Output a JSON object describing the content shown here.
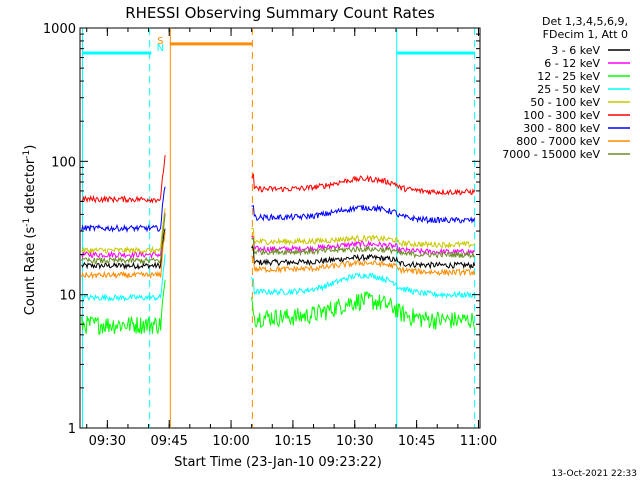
{
  "chart_data": {
    "type": "line",
    "title": "RHESSI Observing Summary Count Rates",
    "xlabel": "Start Time (23-Jan-10 09:23:22)",
    "ylabel_main": "Count Rate (s",
    "ylabel_sup1": "-1",
    "ylabel_mid": " detector",
    "ylabel_sup2": "-1",
    "ylabel_end": ")",
    "yscale": "log",
    "ylim": [
      1,
      1000
    ],
    "xlim_minutes": [
      0,
      97
    ],
    "x_ticks": [
      {
        "label": "09:30",
        "min": 6.63
      },
      {
        "label": "09:45",
        "min": 21.63
      },
      {
        "label": "10:00",
        "min": 36.63
      },
      {
        "label": "10:15",
        "min": 51.63
      },
      {
        "label": "10:30",
        "min": 66.63
      },
      {
        "label": "10:45",
        "min": 81.63
      },
      {
        "label": "11:00",
        "min": 96.63
      }
    ],
    "y_ticks": [
      {
        "label": "1",
        "value": 1
      },
      {
        "label": "10",
        "value": 10
      },
      {
        "label": "100",
        "value": 100
      },
      {
        "label": "1000",
        "value": 1000
      }
    ],
    "legend_header": [
      "Det 1,3,4,5,6,9,",
      "FDecim 1, Att 0"
    ],
    "legend_position": "right",
    "series": [
      {
        "name": "3 - 6 keV",
        "color": "#000000",
        "pre": 16.5,
        "post": 17.5,
        "bump": 1.5
      },
      {
        "name": "6 - 12 keV",
        "color": "#ff00ff",
        "pre": 20.0,
        "post": 22.0,
        "bump": 2.0
      },
      {
        "name": "12 - 25 keV",
        "color": "#00ff00",
        "pre": 6.0,
        "post": 6.8,
        "bump": 2.3
      },
      {
        "name": "25 - 50 keV",
        "color": "#00ffff",
        "pre": 9.5,
        "post": 10.5,
        "bump": 3.5
      },
      {
        "name": "50 - 100 keV",
        "color": "#c8c800",
        "pre": 21.5,
        "post": 25.0,
        "bump": 1.5
      },
      {
        "name": "100 - 300 keV",
        "color": "#ff0000",
        "pre": 52.0,
        "post": 62.0,
        "bump": 12.0
      },
      {
        "name": "300 - 800 keV",
        "color": "#0000ff",
        "pre": 31.5,
        "post": 38.0,
        "bump": 7.0
      },
      {
        "name": "800 - 7000 keV",
        "color": "#ff8c00",
        "pre": 14.0,
        "post": 15.5,
        "bump": 1.8
      },
      {
        "name": "7000 - 15000 keV",
        "color": "#6b8e23",
        "pre": 18.0,
        "post": 21.0,
        "bump": 1.0
      }
    ],
    "flags": [
      {
        "label": "S",
        "color": "#ff8c00"
      },
      {
        "label": "N",
        "color": "#00ffff"
      }
    ],
    "orbit_markers": {
      "night_bars": [
        [
          0.6,
          17.3
        ],
        [
          76.8,
          95.7
        ]
      ],
      "night_bar_value": 650,
      "saa_bar": [
        21.9,
        41.8
      ],
      "saa_bar_value": 760,
      "night_solid": [
        0.6,
        76.8
      ],
      "night_dashed": [
        16.9,
        95.7
      ],
      "saa_solid": 21.9,
      "saa_dashed": 41.8
    },
    "footer_date": "13-Oct-2021 22:33"
  }
}
